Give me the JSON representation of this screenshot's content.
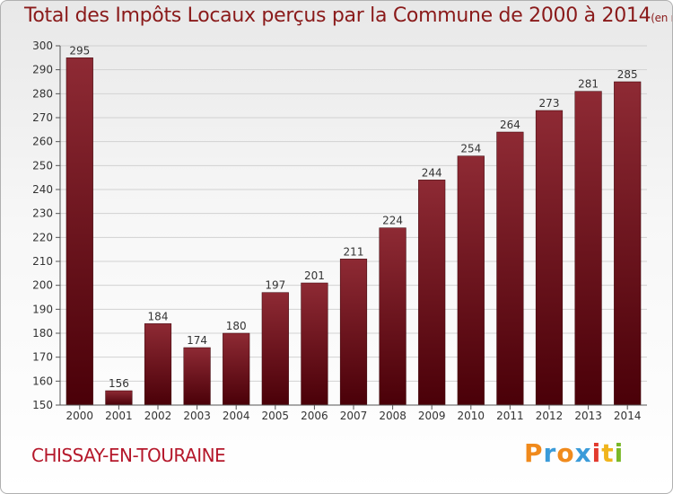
{
  "title": {
    "main": "Total des Impôts Locaux perçus par la Commune de 2000 à 2014",
    "unit": "(en milliers d'€)"
  },
  "commune": "CHISSAY-EN-TOURAINE",
  "logo": {
    "letters": [
      "P",
      "r",
      "o",
      "x",
      "i",
      "t",
      "i"
    ],
    "colors": [
      "#f08a1c",
      "#3a9bd9",
      "#f08a1c",
      "#3a9bd9",
      "#e23a2e",
      "#f0b41c",
      "#7ab828"
    ]
  },
  "colors": {
    "bar_light": "#8e2a34",
    "bar_dark": "#4a0008",
    "grid": "#d2d2d2",
    "axis": "#555555",
    "text": "#333333"
  },
  "chart_data": {
    "type": "bar",
    "title": "Total des Impôts Locaux perçus par la Commune de 2000 à 2014",
    "xlabel": "",
    "ylabel": "",
    "categories": [
      "2000",
      "2001",
      "2002",
      "2003",
      "2004",
      "2005",
      "2006",
      "2007",
      "2008",
      "2009",
      "2010",
      "2011",
      "2012",
      "2013",
      "2014"
    ],
    "values": [
      295,
      156,
      184,
      174,
      180,
      197,
      201,
      211,
      224,
      244,
      254,
      264,
      273,
      281,
      285
    ],
    "ylim": [
      150,
      300
    ],
    "yticks": [
      150,
      160,
      170,
      180,
      190,
      200,
      210,
      220,
      230,
      240,
      250,
      260,
      270,
      280,
      290,
      300
    ],
    "grid": true
  }
}
